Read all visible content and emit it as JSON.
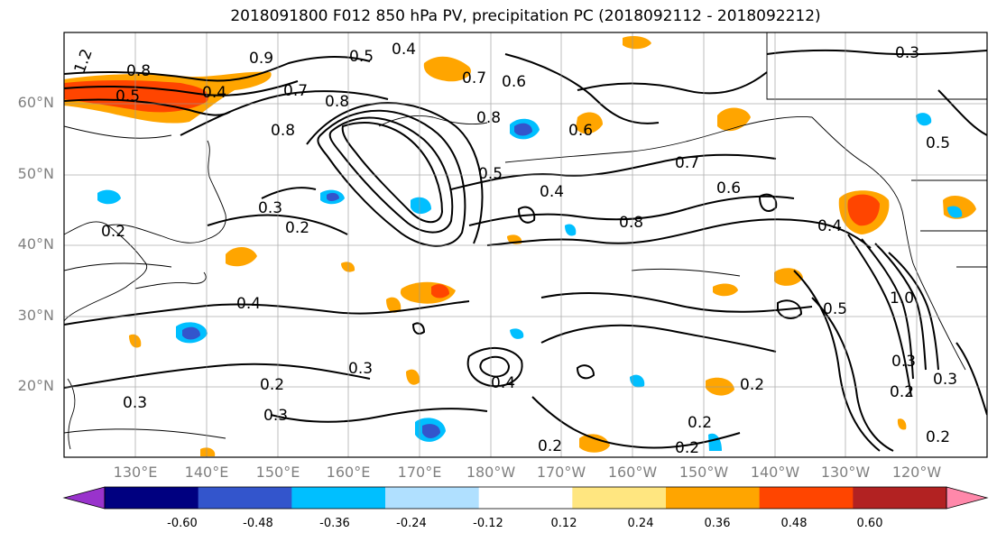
{
  "title": "2018091800 F012 850 hPa PV, precipitation PC (2018092112 - 2018092212)",
  "map": {
    "lat_labels": [
      "60°N",
      "50°N",
      "40°N",
      "30°N",
      "20°N"
    ],
    "lon_labels": [
      "130°E",
      "140°E",
      "150°E",
      "160°E",
      "170°E",
      "180°W",
      "170°W",
      "160°W",
      "150°W",
      "140°W",
      "130°W",
      "120°W"
    ],
    "contour_labels": [
      "1.2",
      "0.8",
      "0.5",
      "0.4",
      "0.7",
      "0.8",
      "0.9",
      "0.5",
      "0.4",
      "0.7",
      "0.6",
      "0.8",
      "0.8",
      "0.5",
      "0.6",
      "0.4",
      "0.7",
      "0.6",
      "0.8",
      "0.3",
      "0.2",
      "0.2",
      "0.4",
      "0.4",
      "0.5",
      "0.3",
      "0.4",
      "0.2",
      "0.2",
      "0.3",
      "0.3",
      "0.2",
      "0.2",
      "0.2",
      "0.5",
      "1.0",
      "0.3",
      "0.3",
      "0.2",
      "0.2",
      "0.3"
    ],
    "grid_lines": true,
    "coastlines": true
  },
  "colorbar": {
    "ticks": [
      "-0.60",
      "-0.48",
      "-0.36",
      "-0.24",
      "-0.12",
      "0.12",
      "0.24",
      "0.36",
      "0.48",
      "0.60"
    ],
    "colors": [
      "#9933cc",
      "#000080",
      "#3355cc",
      "#00bfff",
      "#b0e0ff",
      "#ffffff",
      "#ffe680",
      "#ffa500",
      "#ff4500",
      "#b22222",
      "#ff88aa"
    ],
    "extend": "both"
  },
  "legend_colors": {
    "pos_light": "#ffe680",
    "pos_mid": "#ffa500",
    "pos_strong": "#ff4500",
    "pos_very": "#b22222",
    "neg_light": "#b0e0ff",
    "neg_mid": "#00bfff",
    "neg_strong": "#3355cc",
    "neg_very": "#000080"
  }
}
